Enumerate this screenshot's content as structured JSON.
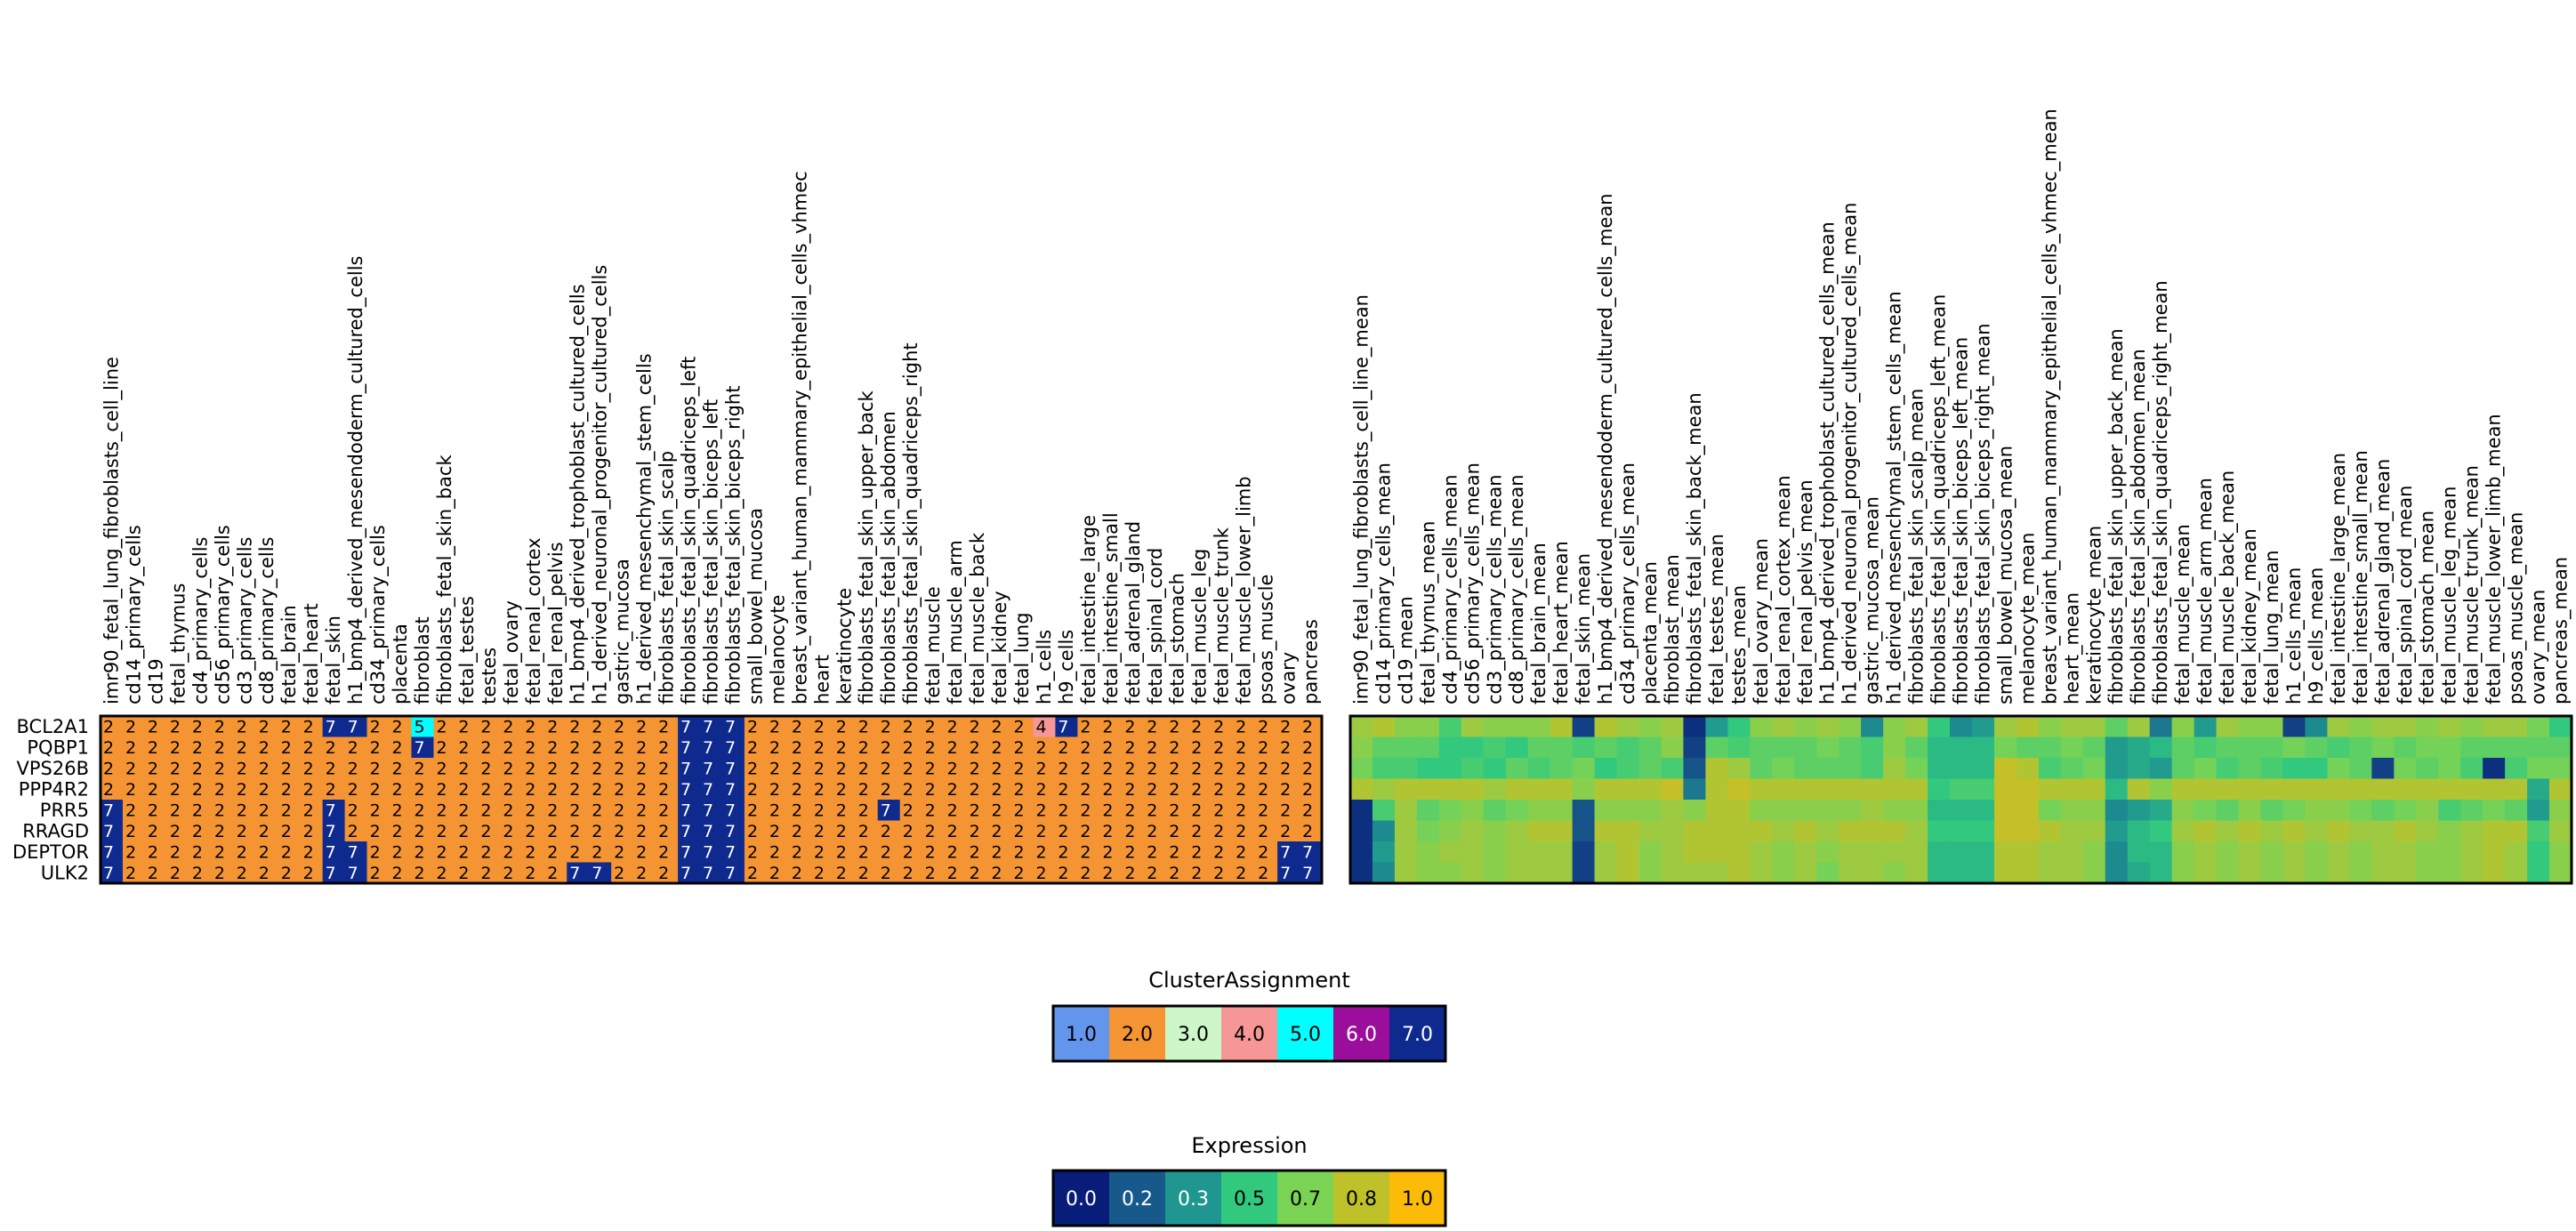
{
  "chart_data": [
    {
      "type": "heatmap",
      "rows": [
        "BCL2A1",
        "PQBP1",
        "VPS26B",
        "PPP4R2",
        "PRR5",
        "RRAGD",
        "DEPTOR",
        "ULK2"
      ],
      "columns": [
        "imr90_fetal_lung_fibroblasts_cell_line",
        "cd14_primary_cells",
        "cd19",
        "fetal_thymus",
        "cd4_primary_cells",
        "cd56_primary_cells",
        "cd3_primary_cells",
        "cd8_primary_cells",
        "fetal_brain",
        "fetal_heart",
        "fetal_skin",
        "h1_bmp4_derived_mesendoderm_cultured_cells",
        "cd34_primary_cells",
        "placenta",
        "fibroblast",
        "fibroblasts_fetal_skin_back",
        "fetal_testes",
        "testes",
        "fetal_ovary",
        "fetal_renal_cortex",
        "fetal_renal_pelvis",
        "h1_bmp4_derived_trophoblast_cultured_cells",
        "h1_derived_neuronal_progenitor_cultured_cells",
        "gastric_mucosa",
        "h1_derived_mesenchymal_stem_cells",
        "fibroblasts_fetal_skin_scalp",
        "fibroblasts_fetal_skin_quadriceps_left",
        "fibroblasts_fetal_skin_biceps_left",
        "fibroblasts_fetal_skin_biceps_right",
        "small_bowel_mucosa",
        "melanocyte",
        "breast_variant_human_mammary_epithelial_cells_vhmec",
        "heart",
        "keratinocyte",
        "fibroblasts_fetal_skin_upper_back",
        "fibroblasts_fetal_skin_abdomen",
        "fibroblasts_fetal_skin_quadriceps_right",
        "fetal_muscle",
        "fetal_muscle_arm",
        "fetal_muscle_back",
        "fetal_kidney",
        "fetal_lung",
        "h1_cells",
        "h9_cells",
        "fetal_intestine_large",
        "fetal_intestine_small",
        "fetal_adrenal_gland",
        "fetal_spinal_cord",
        "fetal_stomach",
        "fetal_muscle_leg",
        "fetal_muscle_trunk",
        "fetal_muscle_lower_limb",
        "psoas_muscle",
        "ovary",
        "pancreas"
      ],
      "values": [
        [
          2,
          2,
          2,
          2,
          2,
          2,
          2,
          2,
          2,
          2,
          7,
          7,
          2,
          2,
          5,
          2,
          2,
          2,
          2,
          2,
          2,
          2,
          2,
          2,
          2,
          2,
          7,
          7,
          7,
          2,
          2,
          2,
          2,
          2,
          2,
          2,
          2,
          2,
          2,
          2,
          2,
          2,
          4,
          7,
          2,
          2,
          2,
          2,
          2,
          2,
          2,
          2,
          2,
          2,
          2
        ],
        [
          2,
          2,
          2,
          2,
          2,
          2,
          2,
          2,
          2,
          2,
          2,
          2,
          2,
          2,
          7,
          2,
          2,
          2,
          2,
          2,
          2,
          2,
          2,
          2,
          2,
          2,
          7,
          7,
          7,
          2,
          2,
          2,
          2,
          2,
          2,
          2,
          2,
          2,
          2,
          2,
          2,
          2,
          2,
          2,
          2,
          2,
          2,
          2,
          2,
          2,
          2,
          2,
          2,
          2,
          2
        ],
        [
          2,
          2,
          2,
          2,
          2,
          2,
          2,
          2,
          2,
          2,
          2,
          2,
          2,
          2,
          2,
          2,
          2,
          2,
          2,
          2,
          2,
          2,
          2,
          2,
          2,
          2,
          7,
          7,
          7,
          2,
          2,
          2,
          2,
          2,
          2,
          2,
          2,
          2,
          2,
          2,
          2,
          2,
          2,
          2,
          2,
          2,
          2,
          2,
          2,
          2,
          2,
          2,
          2,
          2,
          2
        ],
        [
          2,
          2,
          2,
          2,
          2,
          2,
          2,
          2,
          2,
          2,
          2,
          2,
          2,
          2,
          2,
          2,
          2,
          2,
          2,
          2,
          2,
          2,
          2,
          2,
          2,
          2,
          7,
          7,
          7,
          2,
          2,
          2,
          2,
          2,
          2,
          2,
          2,
          2,
          2,
          2,
          2,
          2,
          2,
          2,
          2,
          2,
          2,
          2,
          2,
          2,
          2,
          2,
          2,
          2,
          2
        ],
        [
          7,
          2,
          2,
          2,
          2,
          2,
          2,
          2,
          2,
          2,
          7,
          2,
          2,
          2,
          2,
          2,
          2,
          2,
          2,
          2,
          2,
          2,
          2,
          2,
          2,
          2,
          7,
          7,
          7,
          2,
          2,
          2,
          2,
          2,
          2,
          7,
          2,
          2,
          2,
          2,
          2,
          2,
          2,
          2,
          2,
          2,
          2,
          2,
          2,
          2,
          2,
          2,
          2,
          2,
          2
        ],
        [
          7,
          2,
          2,
          2,
          2,
          2,
          2,
          2,
          2,
          2,
          7,
          2,
          2,
          2,
          2,
          2,
          2,
          2,
          2,
          2,
          2,
          2,
          2,
          2,
          2,
          2,
          7,
          7,
          7,
          2,
          2,
          2,
          2,
          2,
          2,
          2,
          2,
          2,
          2,
          2,
          2,
          2,
          2,
          2,
          2,
          2,
          2,
          2,
          2,
          2,
          2,
          2,
          2,
          2,
          2
        ],
        [
          7,
          2,
          2,
          2,
          2,
          2,
          2,
          2,
          2,
          2,
          7,
          7,
          2,
          2,
          2,
          2,
          2,
          2,
          2,
          2,
          2,
          2,
          2,
          2,
          2,
          2,
          7,
          7,
          7,
          2,
          2,
          2,
          2,
          2,
          2,
          2,
          2,
          2,
          2,
          2,
          2,
          2,
          2,
          2,
          2,
          2,
          2,
          2,
          2,
          2,
          2,
          2,
          2,
          7,
          7
        ],
        [
          7,
          2,
          2,
          2,
          2,
          2,
          2,
          2,
          2,
          2,
          7,
          7,
          2,
          2,
          2,
          2,
          2,
          2,
          2,
          2,
          2,
          7,
          7,
          2,
          2,
          2,
          7,
          7,
          7,
          2,
          2,
          2,
          2,
          2,
          2,
          2,
          2,
          2,
          2,
          2,
          2,
          2,
          2,
          2,
          2,
          2,
          2,
          2,
          2,
          2,
          2,
          2,
          2,
          7,
          7
        ]
      ],
      "cell_labels_shown": true
    },
    {
      "type": "heatmap",
      "rows": [
        "BCL2A1",
        "PQBP1",
        "VPS26B",
        "PPP4R2",
        "PRR5",
        "RRAGD",
        "DEPTOR",
        "ULK2"
      ],
      "columns": [
        "imr90_fetal_lung_fibroblasts_cell_line_mean",
        "cd14_primary_cells_mean",
        "cd19_mean",
        "fetal_thymus_mean",
        "cd4_primary_cells_mean",
        "cd56_primary_cells_mean",
        "cd3_primary_cells_mean",
        "cd8_primary_cells_mean",
        "fetal_brain_mean",
        "fetal_heart_mean",
        "fetal_skin_mean",
        "h1_bmp4_derived_mesendoderm_cultured_cells_mean",
        "cd34_primary_cells_mean",
        "placenta_mean",
        "fibroblast_mean",
        "fibroblasts_fetal_skin_back_mean",
        "fetal_testes_mean",
        "testes_mean",
        "fetal_ovary_mean",
        "fetal_renal_cortex_mean",
        "fetal_renal_pelvis_mean",
        "h1_bmp4_derived_trophoblast_cultured_cells_mean",
        "h1_derived_neuronal_progenitor_cultured_cells_mean",
        "gastric_mucosa_mean",
        "h1_derived_mesenchymal_stem_cells_mean",
        "fibroblasts_fetal_skin_scalp_mean",
        "fibroblasts_fetal_skin_quadriceps_left_mean",
        "fibroblasts_fetal_skin_biceps_left_mean",
        "fibroblasts_fetal_skin_biceps_right_mean",
        "small_bowel_mucosa_mean",
        "melanocyte_mean",
        "breast_variant_human_mammary_epithelial_cells_vhmec_mean",
        "heart_mean",
        "keratinocyte_mean",
        "fibroblasts_fetal_skin_upper_back_mean",
        "fibroblasts_fetal_skin_abdomen_mean",
        "fibroblasts_fetal_skin_quadriceps_right_mean",
        "fetal_muscle_mean",
        "fetal_muscle_arm_mean",
        "fetal_muscle_back_mean",
        "fetal_kidney_mean",
        "fetal_lung_mean",
        "h1_cells_mean",
        "h9_cells_mean",
        "fetal_intestine_large_mean",
        "fetal_intestine_small_mean",
        "fetal_adrenal_gland_mean",
        "fetal_spinal_cord_mean",
        "fetal_stomach_mean",
        "fetal_muscle_leg_mean",
        "fetal_muscle_trunk_mean",
        "fetal_muscle_lower_limb_mean",
        "psoas_muscle_mean",
        "ovary_mean",
        "pancreas_mean"
      ],
      "values": [
        [
          0.75,
          0.8,
          0.7,
          0.7,
          0.55,
          0.75,
          0.7,
          0.7,
          0.7,
          0.8,
          0.1,
          0.8,
          0.75,
          0.7,
          0.75,
          0.05,
          0.35,
          0.5,
          0.7,
          0.75,
          0.7,
          0.75,
          0.7,
          0.3,
          0.7,
          0.75,
          0.5,
          0.3,
          0.35,
          0.75,
          0.8,
          0.7,
          0.75,
          0.75,
          0.6,
          0.75,
          0.25,
          0.7,
          0.35,
          0.75,
          0.7,
          0.7,
          0.1,
          0.3,
          0.75,
          0.7,
          0.75,
          0.75,
          0.7,
          0.75,
          0.7,
          0.75,
          0.75,
          0.65,
          0.5
        ],
        [
          0.7,
          0.6,
          0.6,
          0.6,
          0.5,
          0.5,
          0.55,
          0.5,
          0.6,
          0.6,
          0.55,
          0.6,
          0.55,
          0.6,
          0.7,
          0.1,
          0.6,
          0.55,
          0.6,
          0.6,
          0.6,
          0.65,
          0.6,
          0.55,
          0.7,
          0.6,
          0.45,
          0.45,
          0.45,
          0.65,
          0.6,
          0.6,
          0.65,
          0.6,
          0.35,
          0.4,
          0.45,
          0.6,
          0.55,
          0.6,
          0.6,
          0.6,
          0.65,
          0.6,
          0.55,
          0.6,
          0.65,
          0.6,
          0.65,
          0.65,
          0.6,
          0.6,
          0.6,
          0.6,
          0.6
        ],
        [
          0.65,
          0.55,
          0.55,
          0.5,
          0.5,
          0.55,
          0.5,
          0.6,
          0.55,
          0.6,
          0.65,
          0.5,
          0.55,
          0.6,
          0.55,
          0.15,
          0.8,
          0.75,
          0.6,
          0.65,
          0.6,
          0.6,
          0.6,
          0.55,
          0.75,
          0.65,
          0.45,
          0.45,
          0.45,
          0.85,
          0.8,
          0.55,
          0.6,
          0.65,
          0.35,
          0.4,
          0.35,
          0.6,
          0.65,
          0.55,
          0.6,
          0.55,
          0.5,
          0.5,
          0.65,
          0.6,
          0.1,
          0.65,
          0.6,
          0.65,
          0.55,
          0.05,
          0.55,
          0.65,
          0.65
        ],
        [
          0.8,
          0.75,
          0.8,
          0.8,
          0.8,
          0.8,
          0.75,
          0.8,
          0.8,
          0.8,
          0.7,
          0.8,
          0.8,
          0.8,
          0.85,
          0.25,
          0.8,
          0.85,
          0.8,
          0.8,
          0.8,
          0.8,
          0.8,
          0.8,
          0.8,
          0.8,
          0.5,
          0.55,
          0.55,
          0.85,
          0.85,
          0.8,
          0.8,
          0.8,
          0.45,
          0.8,
          0.7,
          0.8,
          0.8,
          0.8,
          0.8,
          0.8,
          0.8,
          0.8,
          0.8,
          0.8,
          0.8,
          0.8,
          0.8,
          0.8,
          0.8,
          0.8,
          0.8,
          0.4,
          0.8
        ],
        [
          0.05,
          0.55,
          0.75,
          0.6,
          0.65,
          0.7,
          0.6,
          0.65,
          0.7,
          0.7,
          0.15,
          0.7,
          0.7,
          0.7,
          0.75,
          0.7,
          0.8,
          0.8,
          0.7,
          0.7,
          0.7,
          0.7,
          0.7,
          0.75,
          0.7,
          0.7,
          0.45,
          0.45,
          0.45,
          0.85,
          0.85,
          0.65,
          0.7,
          0.7,
          0.3,
          0.35,
          0.4,
          0.7,
          0.65,
          0.6,
          0.7,
          0.6,
          0.65,
          0.7,
          0.7,
          0.65,
          0.6,
          0.65,
          0.7,
          0.55,
          0.6,
          0.65,
          0.6,
          0.35,
          0.7
        ],
        [
          0.05,
          0.3,
          0.75,
          0.65,
          0.7,
          0.75,
          0.7,
          0.75,
          0.8,
          0.8,
          0.15,
          0.8,
          0.8,
          0.75,
          0.75,
          0.8,
          0.8,
          0.8,
          0.8,
          0.75,
          0.8,
          0.75,
          0.8,
          0.8,
          0.8,
          0.75,
          0.5,
          0.5,
          0.5,
          0.85,
          0.85,
          0.8,
          0.75,
          0.75,
          0.35,
          0.45,
          0.5,
          0.75,
          0.8,
          0.75,
          0.8,
          0.75,
          0.8,
          0.75,
          0.8,
          0.75,
          0.75,
          0.8,
          0.75,
          0.7,
          0.75,
          0.8,
          0.8,
          0.55,
          0.75
        ],
        [
          0.05,
          0.35,
          0.75,
          0.7,
          0.75,
          0.75,
          0.7,
          0.75,
          0.75,
          0.75,
          0.1,
          0.75,
          0.8,
          0.7,
          0.75,
          0.8,
          0.8,
          0.8,
          0.75,
          0.7,
          0.75,
          0.7,
          0.75,
          0.75,
          0.75,
          0.75,
          0.45,
          0.45,
          0.45,
          0.8,
          0.8,
          0.75,
          0.75,
          0.7,
          0.3,
          0.45,
          0.45,
          0.7,
          0.75,
          0.7,
          0.75,
          0.7,
          0.75,
          0.7,
          0.75,
          0.7,
          0.75,
          0.75,
          0.7,
          0.7,
          0.75,
          0.8,
          0.75,
          0.5,
          0.7
        ],
        [
          0.05,
          0.3,
          0.75,
          0.7,
          0.7,
          0.75,
          0.7,
          0.75,
          0.75,
          0.75,
          0.1,
          0.75,
          0.8,
          0.7,
          0.75,
          0.75,
          0.75,
          0.8,
          0.75,
          0.7,
          0.75,
          0.65,
          0.75,
          0.75,
          0.7,
          0.75,
          0.45,
          0.45,
          0.45,
          0.8,
          0.8,
          0.75,
          0.75,
          0.7,
          0.3,
          0.4,
          0.45,
          0.7,
          0.75,
          0.7,
          0.75,
          0.7,
          0.75,
          0.7,
          0.75,
          0.7,
          0.75,
          0.75,
          0.7,
          0.7,
          0.75,
          0.8,
          0.75,
          0.5,
          0.7
        ]
      ],
      "cell_labels_shown": false
    }
  ],
  "legends": [
    {
      "title": "ClusterAssignment",
      "items": [
        {
          "label": "1.0",
          "color": "#6495ed",
          "text_color": "#000000"
        },
        {
          "label": "2.0",
          "color": "#f59433",
          "text_color": "#000000"
        },
        {
          "label": "3.0",
          "color": "#cdf7c8",
          "text_color": "#000000"
        },
        {
          "label": "4.0",
          "color": "#f79696",
          "text_color": "#000000"
        },
        {
          "label": "5.0",
          "color": "#00ffff",
          "text_color": "#000000"
        },
        {
          "label": "6.0",
          "color": "#9b0e9b",
          "text_color": "#ffffff"
        },
        {
          "label": "7.0",
          "color": "#0e2a8f",
          "text_color": "#ffffff"
        }
      ]
    },
    {
      "title": "Expression",
      "items": [
        {
          "label": "0.0",
          "color": "#081d7a",
          "text_color": "#ffffff"
        },
        {
          "label": "0.2",
          "color": "#17598b",
          "text_color": "#ffffff"
        },
        {
          "label": "0.3",
          "color": "#1f9690",
          "text_color": "#ffffff"
        },
        {
          "label": "0.5",
          "color": "#32c97f",
          "text_color": "#000000"
        },
        {
          "label": "0.7",
          "color": "#7bd354",
          "text_color": "#000000"
        },
        {
          "label": "0.8",
          "color": "#bfc12b",
          "text_color": "#000000"
        },
        {
          "label": "1.0",
          "color": "#fbbb06",
          "text_color": "#000000"
        }
      ]
    }
  ],
  "colors": {
    "cluster_map": {
      "1": "#6495ed",
      "2": "#f59433",
      "3": "#cdf7c8",
      "4": "#f79696",
      "5": "#00ffff",
      "6": "#9b0e9b",
      "7": "#0e2a8f"
    },
    "expression_stops": [
      "#081d7a",
      "#17598b",
      "#1f9690",
      "#32c97f",
      "#7bd354",
      "#bfc12b",
      "#fbbb06"
    ]
  }
}
